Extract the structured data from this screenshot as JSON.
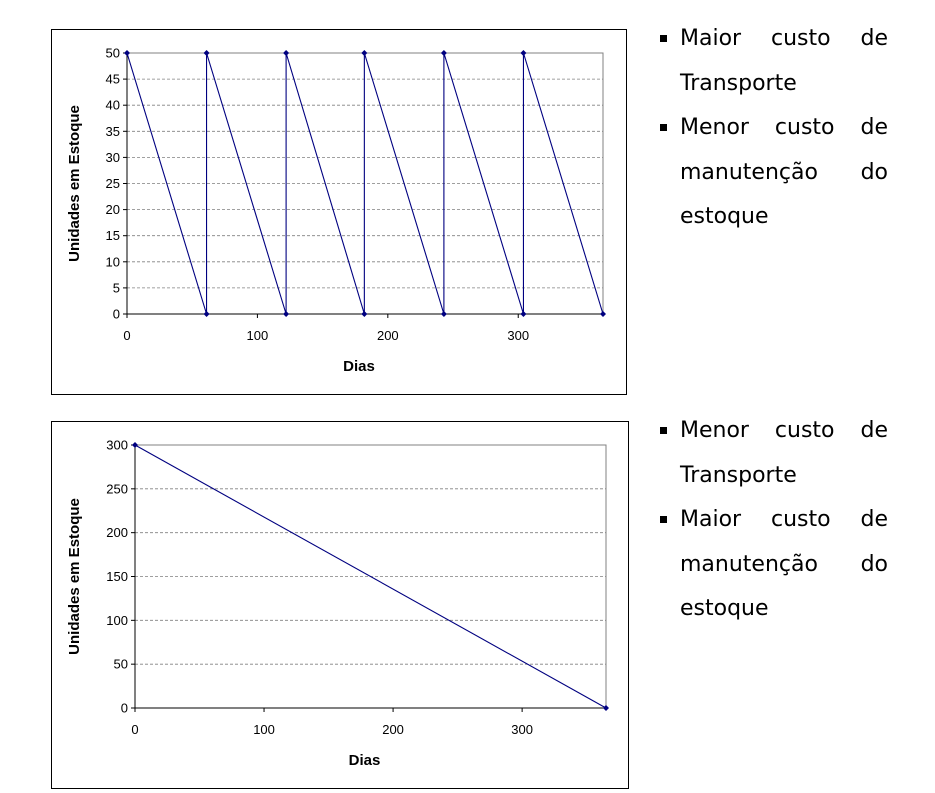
{
  "colors": {
    "series": "#000080",
    "grid": "#808080",
    "frame": "#000000"
  },
  "chart_data": [
    {
      "type": "line",
      "title": "",
      "xlabel": "Dias",
      "ylabel": "Unidades em Estoque",
      "xlim": [
        0,
        365
      ],
      "ylim": [
        0,
        50
      ],
      "xticks": [
        0,
        100,
        200,
        300
      ],
      "yticks": [
        0,
        5,
        10,
        15,
        20,
        25,
        30,
        35,
        40,
        45,
        50
      ],
      "grid": "horizontal-dashed",
      "legend": "none",
      "series": [
        {
          "x": [
            0,
            61,
            61,
            122,
            122,
            182,
            182,
            243,
            243,
            304,
            304,
            365
          ],
          "y": [
            50,
            0,
            50,
            0,
            50,
            0,
            50,
            0,
            50,
            0,
            50,
            0
          ]
        }
      ]
    },
    {
      "type": "line",
      "title": "",
      "xlabel": "Dias",
      "ylabel": "Unidades em Estoque",
      "xlim": [
        0,
        365
      ],
      "ylim": [
        0,
        300
      ],
      "xticks": [
        0,
        100,
        200,
        300
      ],
      "yticks": [
        0,
        50,
        100,
        150,
        200,
        250,
        300
      ],
      "grid": "horizontal-dashed",
      "legend": "none",
      "series": [
        {
          "x": [
            0,
            365
          ],
          "y": [
            300,
            0
          ]
        }
      ]
    }
  ],
  "notes": [
    {
      "items": [
        "Maior custo de Transporte",
        "Menor custo de manutenção do estoque"
      ]
    },
    {
      "items": [
        "Menor custo de Transporte",
        "Maior custo de manutenção do estoque"
      ]
    }
  ]
}
